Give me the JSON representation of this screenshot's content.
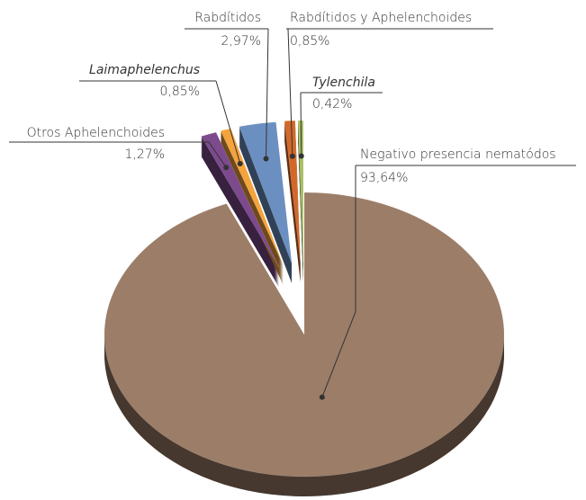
{
  "chart_data": {
    "type": "pie",
    "categories": [
      "Negativo presencia nematódos",
      "Otros Aphelenchoides",
      "Laimaphelenchus",
      "Rabdítidos",
      "Rabdítidos y Aphelenchoides",
      "Tylenchila"
    ],
    "values": [
      93.64,
      1.27,
      0.85,
      2.97,
      0.85,
      0.42
    ],
    "value_labels": [
      "93,64%",
      "1,27%",
      "0,85%",
      "2,97%",
      "0,85%",
      "0,42%"
    ],
    "colors": [
      "#9b7d68",
      "#7d4a8d",
      "#f4a33d",
      "#6b8fc0",
      "#d2692b",
      "#a9c162"
    ],
    "italic": [
      false,
      false,
      true,
      false,
      false,
      true
    ]
  }
}
